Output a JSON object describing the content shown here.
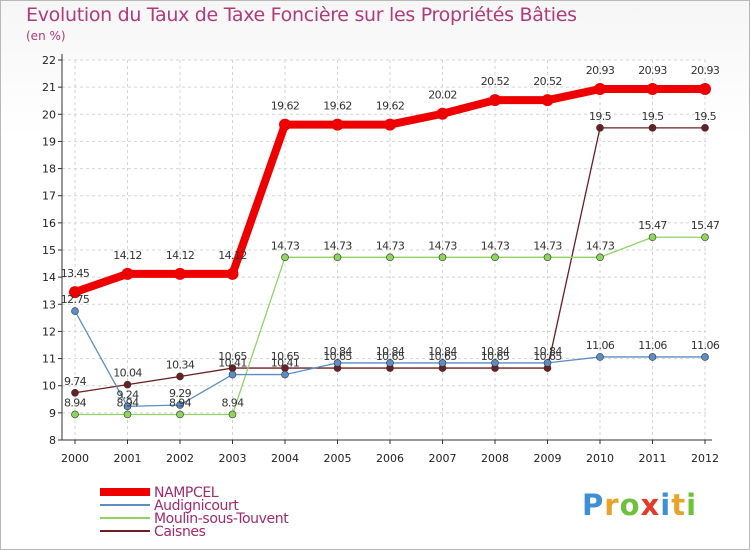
{
  "chart_data": {
    "type": "line",
    "title": "Evolution du Taux de Taxe Foncière sur les Propriétés Bâties",
    "subtitle": "(en %)",
    "x": [
      "2000",
      "2001",
      "2002",
      "2003",
      "2004",
      "2005",
      "2006",
      "2007",
      "2008",
      "2009",
      "2010",
      "2011",
      "2012"
    ],
    "ylim": [
      8,
      22
    ],
    "yticks": [
      8,
      9,
      10,
      11,
      12,
      13,
      14,
      15,
      16,
      17,
      18,
      19,
      20,
      21,
      22
    ],
    "series": [
      {
        "name": "NAMPCEL",
        "color": "#ee0000",
        "values": [
          13.45,
          14.12,
          14.12,
          14.12,
          19.62,
          19.62,
          19.62,
          20.02,
          20.52,
          20.52,
          20.93,
          20.93,
          20.93
        ],
        "labels": [
          "13.45",
          "14.12",
          "14.12",
          "14.12",
          "19.62",
          "19.62",
          "19.62",
          "20.02",
          "20.52",
          "20.52",
          "20.93",
          "20.93",
          "20.93"
        ]
      },
      {
        "name": "Audignicourt",
        "color": "#5b8ec6",
        "values": [
          12.75,
          9.24,
          9.29,
          10.41,
          10.41,
          10.84,
          10.84,
          10.84,
          10.84,
          10.84,
          11.06,
          11.06,
          11.06
        ],
        "labels": [
          "12.75",
          "9.24",
          "9.29",
          "10.41",
          "10.41",
          "10.84",
          "10.84",
          "10.84",
          "10.84",
          "10.84",
          "11.06",
          "11.06",
          "11.06"
        ]
      },
      {
        "name": "Moulin-sous-Touvent",
        "color": "#8ed45e",
        "values": [
          8.94,
          8.94,
          8.94,
          8.94,
          14.73,
          14.73,
          14.73,
          14.73,
          14.73,
          14.73,
          14.73,
          15.47,
          15.47
        ],
        "labels": [
          "8.94",
          "8.94",
          "8.94",
          "8.94",
          "14.73",
          "14.73",
          "14.73",
          "14.73",
          "14.73",
          "14.73",
          "14.73",
          "15.47",
          "15.47"
        ]
      },
      {
        "name": "Caisnes",
        "color": "#6b1e24",
        "values": [
          9.74,
          10.04,
          10.34,
          10.65,
          10.65,
          10.65,
          10.65,
          10.65,
          10.65,
          10.65,
          19.5,
          19.5,
          19.5
        ],
        "labels": [
          "9.74",
          "10.04",
          "10.34",
          "10.65",
          "10.65",
          "10.65",
          "10.65",
          "10.65",
          "10.65",
          "10.65",
          "19.5",
          "19.5",
          "19.5"
        ]
      }
    ],
    "legend": "bottom-left"
  },
  "logo": {
    "letters": [
      "P",
      "r",
      "o",
      "x",
      "i",
      "t",
      "i"
    ],
    "colors": [
      "#3d8fd6",
      "#e8a428",
      "#6fc03a",
      "#e23b2a",
      "#3d8fd6",
      "#e8a428",
      "#6fc03a"
    ]
  }
}
